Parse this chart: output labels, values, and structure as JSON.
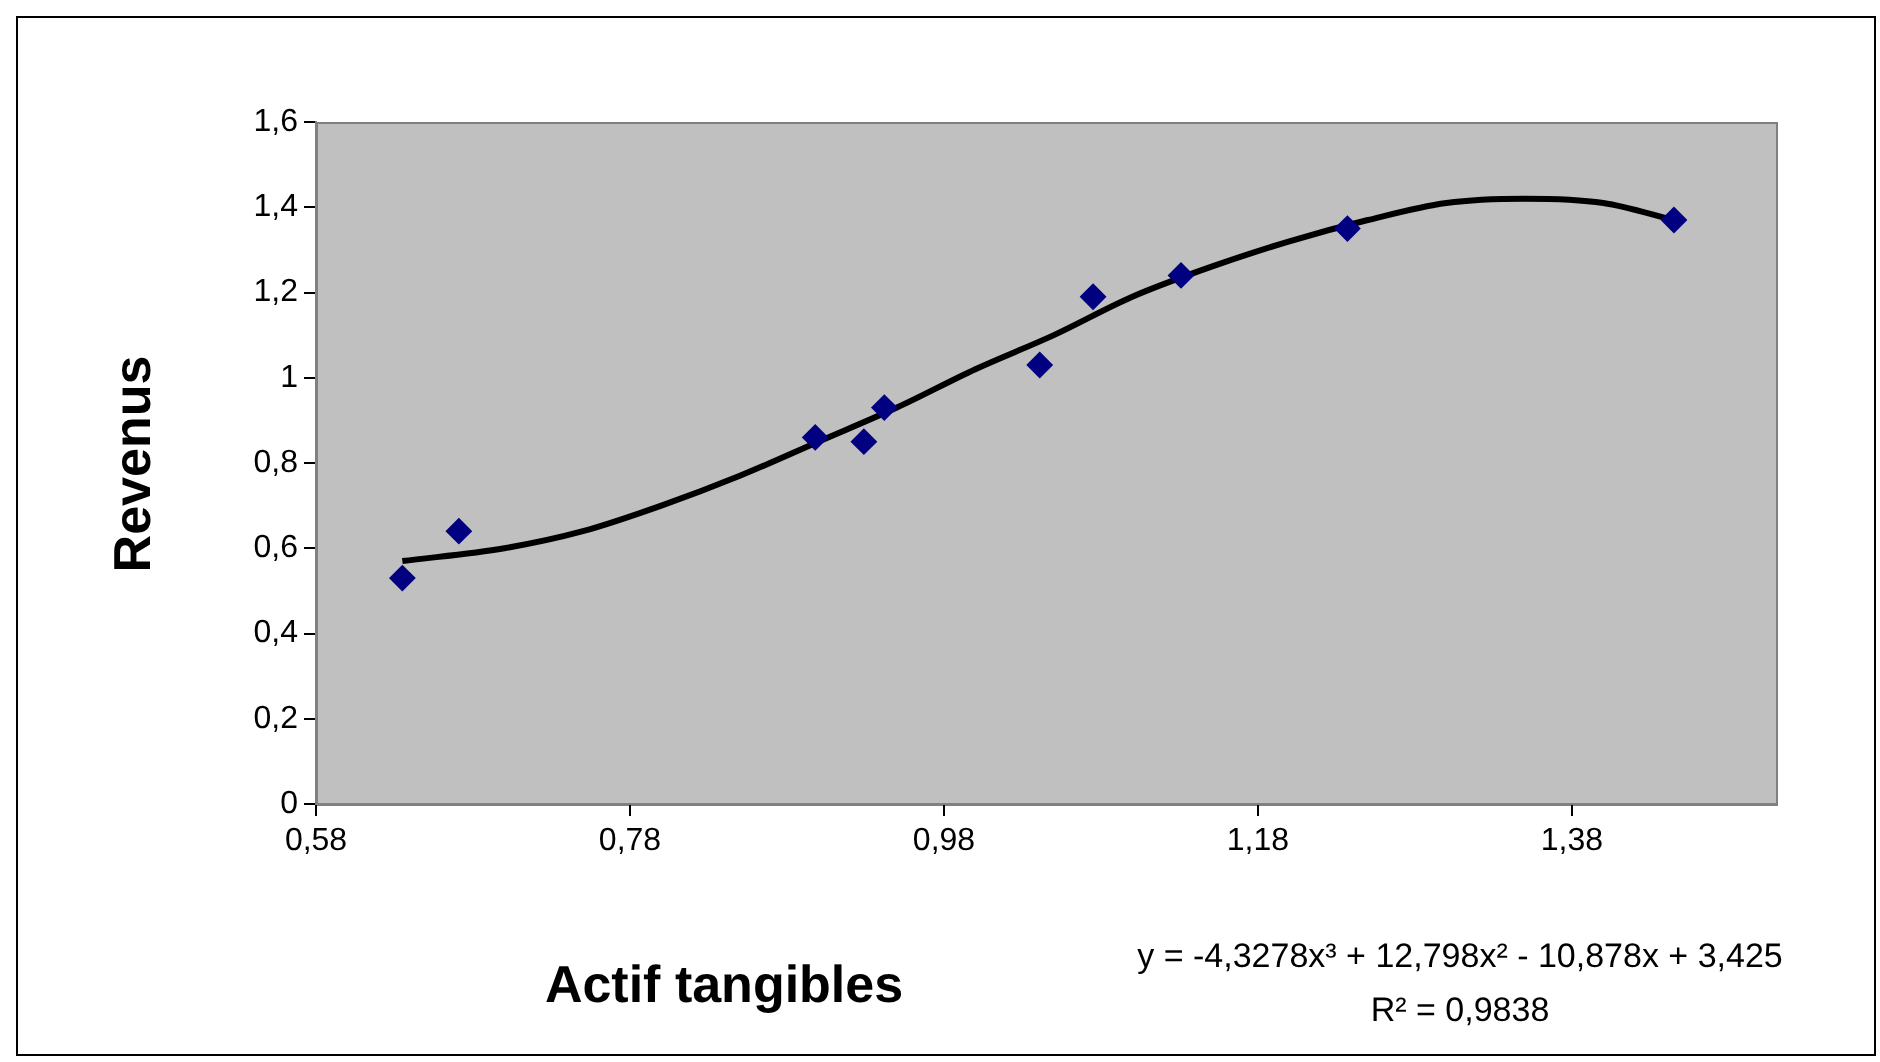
{
  "chart_data": {
    "type": "scatter",
    "xlabel": "Actif tangibles",
    "ylabel": "Revenus",
    "annotations": [
      "y = -4,3278x³ + 12,798x² - 10,878x + 3,425",
      "R² = 0,9838"
    ],
    "xlim": [
      0.58,
      1.51
    ],
    "xticks": [
      {
        "value": 0.58,
        "label": "0,58"
      },
      {
        "value": 0.78,
        "label": "0,78"
      },
      {
        "value": 0.98,
        "label": "0,98"
      },
      {
        "value": 1.18,
        "label": "1,18"
      },
      {
        "value": 1.38,
        "label": "1,38"
      }
    ],
    "ylim": [
      0,
      1.6
    ],
    "yticks": [
      0,
      {
        "value": 0.2,
        "label": "0,2"
      },
      {
        "value": 0.4,
        "label": "0,4"
      },
      {
        "value": 0.6,
        "label": "0,6"
      },
      {
        "value": 0.8,
        "label": "0,8"
      },
      1,
      {
        "value": 1.2,
        "label": "1,2"
      },
      {
        "value": 1.4,
        "label": "1,4"
      },
      {
        "value": 1.6,
        "label": "1,6"
      }
    ],
    "grid": false,
    "legend": false,
    "marker": "diamond",
    "series": [
      {
        "type": "scatter",
        "color": "#000080",
        "x": [
          0.635,
          0.671,
          0.898,
          0.929,
          0.942,
          1.041,
          1.075,
          1.131,
          1.237,
          1.445
        ],
        "values": [
          0.53,
          0.64,
          0.86,
          0.85,
          0.93,
          1.03,
          1.19,
          1.24,
          1.35,
          1.37
        ]
      },
      {
        "type": "line",
        "color": "#000000",
        "marker": "none",
        "x": [
          0.635,
          0.7,
          0.75,
          0.8,
          0.85,
          0.9,
          0.95,
          1.0,
          1.05,
          1.1,
          1.15,
          1.2,
          1.25,
          1.3,
          1.35,
          1.4,
          1.445
        ],
        "values": [
          0.57,
          0.6,
          0.64,
          0.7,
          0.77,
          0.85,
          0.93,
          1.02,
          1.1,
          1.19,
          1.26,
          1.32,
          1.37,
          1.41,
          1.42,
          1.41,
          1.37
        ]
      }
    ]
  }
}
